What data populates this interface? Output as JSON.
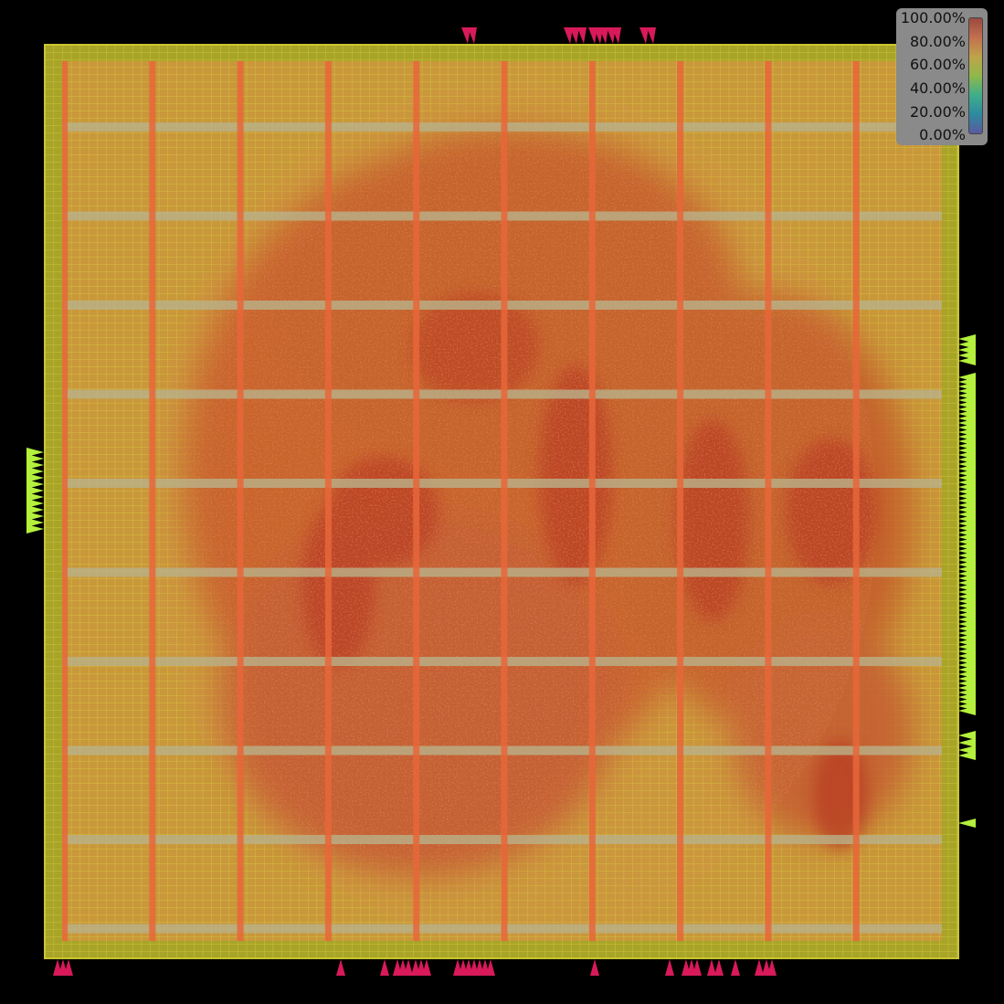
{
  "view": "placement-density-heatmap",
  "legend": {
    "ticks": [
      "100.00%",
      "80.00%",
      "60.00%",
      "40.00%",
      "20.00%",
      "0.00%"
    ],
    "gradient": [
      "#9b4a3f",
      "#c2704f",
      "#bfa34a",
      "#8fb84a",
      "#3fae8a",
      "#2e8aa0",
      "#5a5aa0"
    ]
  },
  "colors": {
    "background": "#000000",
    "die_fill": "#a8a428",
    "die_border": "#c8c430",
    "core_fill": "#c89a3a",
    "grid_line": "#d6c43c",
    "strap_vertical": "#e8663a",
    "strap_horizontal": "#b9b28a",
    "hot_region": "#c64a28",
    "hot_region_core": "#b83420",
    "pin_top_bottom": "#d81a5a",
    "pin_left_right": "#b4f03c"
  },
  "chart_data": {
    "type": "heatmap",
    "value_range_percent": [
      0,
      100
    ],
    "legend_placement": "top-right",
    "grid": true
  }
}
